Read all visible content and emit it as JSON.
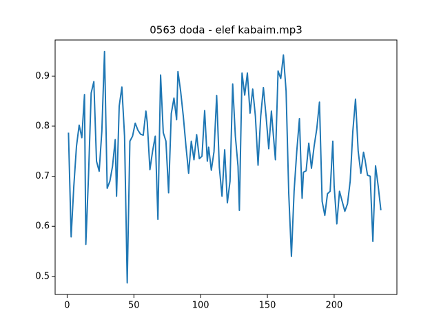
{
  "chart_data": {
    "type": "line",
    "title": "0563 doda - elef kabaim.mp3",
    "x": [
      1,
      3,
      5,
      7,
      9,
      11,
      13,
      14,
      16,
      18,
      20,
      22,
      24,
      26,
      28,
      30,
      32,
      34,
      36,
      37,
      39,
      41,
      43,
      45,
      47,
      49,
      51,
      53,
      55,
      57,
      59,
      60,
      62,
      64,
      66,
      68,
      70,
      72,
      74,
      76,
      78,
      80,
      82,
      83,
      85,
      87,
      89,
      91,
      93,
      95,
      97,
      99,
      101,
      103,
      105,
      106,
      108,
      110,
      112,
      114,
      116,
      118,
      120,
      122,
      124,
      126,
      128,
      129,
      131,
      133,
      135,
      137,
      139,
      141,
      143,
      145,
      147,
      149,
      151,
      153,
      154,
      156,
      158,
      160,
      162,
      164,
      166,
      168,
      170,
      172,
      174,
      176,
      177,
      179,
      181,
      183,
      185,
      187,
      189,
      191,
      193,
      195,
      197,
      199,
      200,
      202,
      204,
      206,
      208,
      210,
      212,
      214,
      216,
      218,
      220,
      222,
      223,
      225,
      227,
      229,
      231,
      233,
      235
    ],
    "series": [
      {
        "color": "#1f77b4",
        "values": [
          0.787,
          0.579,
          0.68,
          0.76,
          0.802,
          0.777,
          0.863,
          0.564,
          0.7,
          0.866,
          0.889,
          0.73,
          0.71,
          0.79,
          0.949,
          0.676,
          0.69,
          0.72,
          0.773,
          0.66,
          0.84,
          0.878,
          0.78,
          0.487,
          0.77,
          0.78,
          0.806,
          0.792,
          0.784,
          0.782,
          0.83,
          0.808,
          0.713,
          0.75,
          0.78,
          0.614,
          0.902,
          0.787,
          0.77,
          0.667,
          0.825,
          0.856,
          0.813,
          0.909,
          0.87,
          0.82,
          0.76,
          0.706,
          0.77,
          0.733,
          0.783,
          0.735,
          0.74,
          0.831,
          0.73,
          0.758,
          0.712,
          0.749,
          0.861,
          0.718,
          0.66,
          0.753,
          0.647,
          0.69,
          0.884,
          0.78,
          0.72,
          0.632,
          0.906,
          0.862,
          0.906,
          0.826,
          0.874,
          0.82,
          0.722,
          0.82,
          0.877,
          0.82,
          0.755,
          0.83,
          0.797,
          0.733,
          0.91,
          0.895,
          0.942,
          0.87,
          0.665,
          0.54,
          0.67,
          0.75,
          0.815,
          0.656,
          0.708,
          0.711,
          0.766,
          0.716,
          0.76,
          0.795,
          0.848,
          0.65,
          0.622,
          0.665,
          0.67,
          0.77,
          0.68,
          0.605,
          0.67,
          0.65,
          0.63,
          0.645,
          0.69,
          0.79,
          0.854,
          0.75,
          0.706,
          0.748,
          0.735,
          0.702,
          0.7,
          0.57,
          0.721,
          0.68,
          0.632
        ]
      }
    ],
    "xlim": [
      -9,
      247
    ],
    "ylim": [
      0.464,
      0.972
    ],
    "xticks": [
      0,
      50,
      100,
      150,
      200
    ],
    "yticks": [
      0.5,
      0.6,
      0.7,
      0.8,
      0.9
    ]
  }
}
